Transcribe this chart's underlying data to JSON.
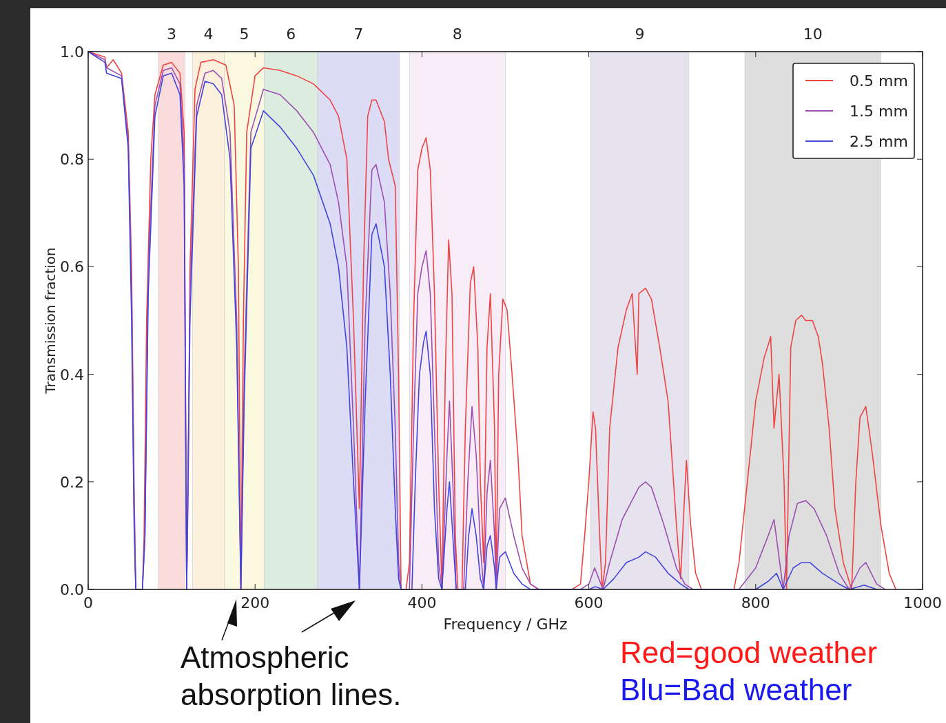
{
  "chart_data": {
    "type": "line",
    "xlabel": "Frequency / GHz",
    "ylabel": "Transmission fraction",
    "xlim": [
      0,
      1000
    ],
    "xticks": [
      0,
      200,
      400,
      600,
      800,
      1000
    ],
    "ylim": [
      0,
      1
    ],
    "yticks": [
      {
        "value": 0,
        "label": "0.0"
      },
      {
        "value": 0.2,
        "label": "0.2"
      },
      {
        "value": 0.4,
        "label": "0.4"
      },
      {
        "value": 0.6,
        "label": "0.6"
      },
      {
        "value": 0.8,
        "label": "0.8"
      },
      {
        "value": 1,
        "label": "1.0"
      }
    ],
    "legend": "top right",
    "grid": false,
    "bands": [
      {
        "axis": "x",
        "from": 84,
        "to": 116,
        "label": "3",
        "color": "#fadcdc"
      },
      {
        "axis": "x",
        "from": 125,
        "to": 163,
        "label": "4",
        "color": "#fbf0dc"
      },
      {
        "axis": "x",
        "from": 163,
        "to": 211,
        "label": "5",
        "color": "#fbf8e0"
      },
      {
        "axis": "x",
        "from": 211,
        "to": 275,
        "label": "6",
        "color": "#dcecdf"
      },
      {
        "axis": "x",
        "from": 275,
        "to": 373,
        "label": "7",
        "color": "#dcdcf6"
      },
      {
        "axis": "x",
        "from": 385,
        "to": 500,
        "label": "8",
        "color": "#f8ecf6"
      },
      {
        "axis": "x",
        "from": 602,
        "to": 720,
        "label": "9",
        "color": "#e6e2ee"
      },
      {
        "axis": "x",
        "from": 787,
        "to": 950,
        "label": "10",
        "color": "#dedede"
      }
    ],
    "series": [
      {
        "name": "0.5 mm",
        "color": "#ee4444",
        "x": [
          0,
          10,
          20,
          22,
          30,
          40,
          48,
          52,
          55,
          57,
          65,
          67,
          70,
          75,
          80,
          90,
          100,
          110,
          115,
          118,
          120,
          122,
          128,
          135,
          150,
          165,
          175,
          180,
          183,
          186,
          190,
          200,
          210,
          230,
          250,
          270,
          290,
          300,
          310,
          318,
          325,
          330,
          335,
          340,
          345,
          355,
          360,
          368,
          372,
          375,
          381,
          385,
          390,
          395,
          400,
          405,
          410,
          415,
          420,
          424,
          428,
          432,
          436,
          440,
          443,
          448,
          452,
          458,
          462,
          467,
          470,
          474,
          478,
          482,
          487,
          489,
          492,
          497,
          502,
          508,
          515,
          520,
          530,
          540,
          580,
          590,
          595,
          600,
          605,
          608,
          613,
          616,
          620,
          625,
          635,
          645,
          652,
          658,
          660,
          668,
          675,
          685,
          695,
          705,
          710,
          714,
          717,
          722,
          728,
          735,
          774,
          780,
          790,
          800,
          810,
          818,
          822,
          828,
          834,
          837,
          842,
          848,
          855,
          860,
          868,
          875,
          880,
          888,
          895,
          905,
          915,
          920,
          925,
          932,
          940,
          950,
          960,
          968
        ],
        "values": [
          1,
          0.995,
          0.99,
          0.97,
          0.985,
          0.96,
          0.85,
          0.6,
          0.2,
          0,
          0,
          0.1,
          0.5,
          0.8,
          0.92,
          0.975,
          0.98,
          0.96,
          0.85,
          0,
          0.2,
          0.6,
          0.93,
          0.98,
          0.985,
          0.975,
          0.9,
          0.6,
          0,
          0.5,
          0.85,
          0.955,
          0.97,
          0.965,
          0.955,
          0.94,
          0.91,
          0.88,
          0.8,
          0.5,
          0.15,
          0.6,
          0.88,
          0.91,
          0.91,
          0.87,
          0.8,
          0.75,
          0.4,
          0,
          0,
          0.05,
          0.5,
          0.78,
          0.82,
          0.84,
          0.78,
          0.55,
          0.2,
          0,
          0.4,
          0.65,
          0.55,
          0.1,
          0,
          0,
          0.3,
          0.57,
          0.6,
          0.45,
          0.2,
          0.05,
          0.45,
          0.55,
          0.3,
          0,
          0.4,
          0.54,
          0.52,
          0.4,
          0.25,
          0.1,
          0.01,
          0,
          0,
          0.01,
          0.1,
          0.2,
          0.33,
          0.3,
          0.1,
          0,
          0.05,
          0.3,
          0.45,
          0.52,
          0.55,
          0.4,
          0.55,
          0.56,
          0.54,
          0.45,
          0.35,
          0.12,
          0.02,
          0.15,
          0.24,
          0.12,
          0.03,
          0,
          0,
          0.05,
          0.2,
          0.35,
          0.43,
          0.47,
          0.3,
          0.4,
          0.2,
          0,
          0.45,
          0.5,
          0.51,
          0.5,
          0.5,
          0.47,
          0.42,
          0.3,
          0.15,
          0.05,
          0,
          0.2,
          0.32,
          0.34,
          0.25,
          0.12,
          0.03,
          0
        ]
      },
      {
        "name": "1.5 mm",
        "color": "#9b4fb0",
        "x": [
          0,
          20,
          22,
          40,
          48,
          52,
          55,
          57,
          65,
          68,
          72,
          80,
          90,
          100,
          110,
          115,
          118,
          122,
          130,
          140,
          150,
          160,
          170,
          178,
          183,
          187,
          195,
          210,
          230,
          250,
          270,
          290,
          300,
          310,
          318,
          325,
          332,
          340,
          345,
          355,
          362,
          368,
          372,
          375,
          385,
          390,
          395,
          400,
          405,
          410,
          415,
          420,
          424,
          430,
          433,
          437,
          441,
          450,
          455,
          460,
          465,
          470,
          474,
          478,
          482,
          487,
          489,
          493,
          500,
          510,
          520,
          530,
          540,
          590,
          600,
          607,
          612,
          617,
          625,
          640,
          650,
          660,
          668,
          675,
          690,
          705,
          715,
          725,
          780,
          800,
          815,
          822,
          833,
          840,
          850,
          860,
          870,
          885,
          900,
          912,
          925,
          932,
          945,
          955
        ],
        "values": [
          1,
          0.985,
          0.97,
          0.955,
          0.83,
          0.55,
          0.15,
          0,
          0,
          0.1,
          0.6,
          0.9,
          0.965,
          0.97,
          0.94,
          0.8,
          0,
          0.55,
          0.9,
          0.96,
          0.965,
          0.95,
          0.85,
          0.5,
          0,
          0.4,
          0.85,
          0.93,
          0.92,
          0.89,
          0.85,
          0.79,
          0.72,
          0.6,
          0.3,
          0,
          0.5,
          0.78,
          0.79,
          0.72,
          0.55,
          0.3,
          0.05,
          0,
          0,
          0.3,
          0.55,
          0.6,
          0.63,
          0.55,
          0.3,
          0.05,
          0,
          0.25,
          0.35,
          0.2,
          0,
          0,
          0.2,
          0.34,
          0.25,
          0.08,
          0,
          0.18,
          0.24,
          0.1,
          0,
          0.15,
          0.17,
          0.1,
          0.04,
          0.01,
          0,
          0,
          0.01,
          0.04,
          0.02,
          0,
          0.05,
          0.13,
          0.16,
          0.19,
          0.2,
          0.19,
          0.12,
          0.04,
          0.01,
          0,
          0,
          0.04,
          0.1,
          0.13,
          0,
          0.1,
          0.16,
          0.165,
          0.15,
          0.1,
          0.03,
          0,
          0.04,
          0.05,
          0.01,
          0
        ]
      },
      {
        "name": "2.5 mm",
        "color": "#4444dd",
        "x": [
          0,
          20,
          22,
          40,
          48,
          52,
          55,
          57,
          65,
          68,
          72,
          80,
          90,
          100,
          110,
          115,
          118,
          122,
          130,
          140,
          150,
          160,
          170,
          178,
          183,
          187,
          195,
          210,
          230,
          250,
          270,
          290,
          300,
          310,
          318,
          325,
          332,
          340,
          345,
          355,
          362,
          368,
          372,
          375,
          388,
          392,
          397,
          402,
          405,
          410,
          415,
          420,
          424,
          430,
          433,
          437,
          441,
          452,
          456,
          460,
          465,
          470,
          474,
          478,
          482,
          487,
          489,
          493,
          500,
          510,
          520,
          530,
          600,
          608,
          617,
          630,
          645,
          660,
          668,
          680,
          695,
          710,
          720,
          800,
          815,
          825,
          833,
          845,
          855,
          865,
          880,
          900,
          912,
          930,
          945
        ],
        "values": [
          1,
          0.98,
          0.96,
          0.95,
          0.82,
          0.5,
          0.12,
          0,
          0,
          0.1,
          0.55,
          0.88,
          0.955,
          0.96,
          0.92,
          0.75,
          0,
          0.5,
          0.88,
          0.945,
          0.94,
          0.92,
          0.8,
          0.45,
          0,
          0.35,
          0.82,
          0.89,
          0.86,
          0.82,
          0.77,
          0.68,
          0.6,
          0.45,
          0.2,
          0,
          0.35,
          0.66,
          0.68,
          0.6,
          0.4,
          0.15,
          0.02,
          0,
          0,
          0.2,
          0.4,
          0.46,
          0.48,
          0.4,
          0.15,
          0.02,
          0,
          0.15,
          0.2,
          0.1,
          0,
          0,
          0.1,
          0.15,
          0.1,
          0.02,
          0,
          0.08,
          0.1,
          0.04,
          0,
          0.06,
          0.07,
          0.03,
          0.01,
          0,
          0,
          0.005,
          0,
          0.02,
          0.05,
          0.06,
          0.07,
          0.06,
          0.03,
          0.01,
          0,
          0,
          0.015,
          0.03,
          0,
          0.04,
          0.05,
          0.05,
          0.03,
          0.01,
          0,
          0.008,
          0
        ]
      }
    ],
    "annotations": [
      "Atmospheric absorption lines.",
      "Red=good weather",
      "Blu=Bad weather"
    ]
  }
}
